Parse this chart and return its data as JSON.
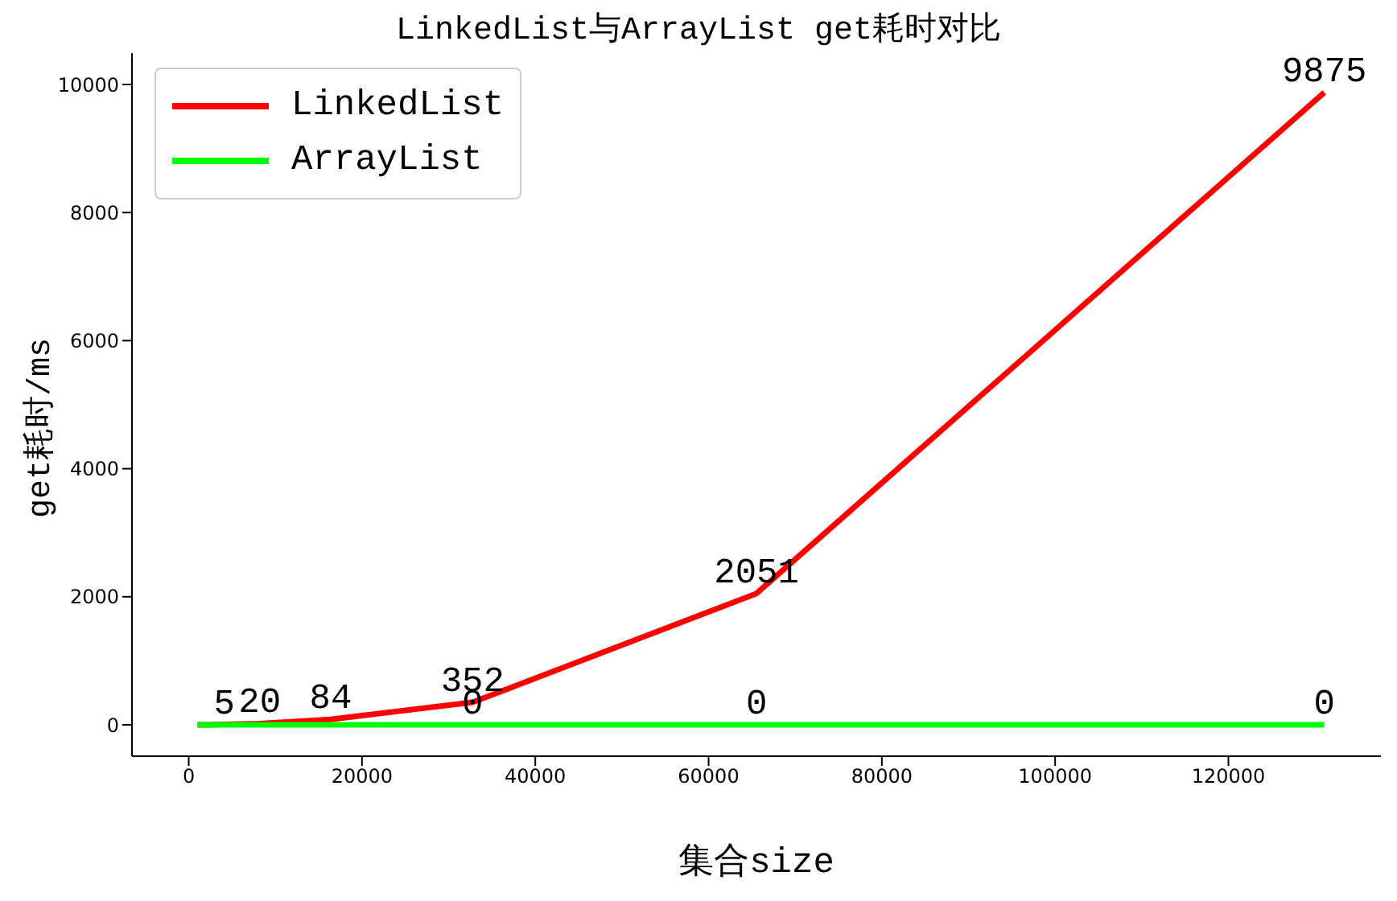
{
  "chart_data": {
    "type": "line",
    "title": "LinkedList与ArrayList get耗时对比",
    "xlabel": "集合size",
    "ylabel": "get耗时/ms",
    "x": [
      1024,
      2048,
      4096,
      8192,
      16384,
      32768,
      65536,
      131072
    ],
    "series": [
      {
        "name": "LinkedList",
        "color": "#ff0000",
        "values": [
          0,
          0,
          5,
          20,
          84,
          352,
          2051,
          9875
        ],
        "value_labels": [
          null,
          null,
          "5",
          "20",
          "84",
          "352",
          "2051",
          "9875"
        ]
      },
      {
        "name": "ArrayList",
        "color": "#00ff00",
        "values": [
          0,
          0,
          0,
          0,
          0,
          0,
          0,
          0
        ],
        "value_labels": [
          null,
          null,
          null,
          null,
          null,
          "0",
          "0",
          "0"
        ]
      }
    ],
    "xlim": [
      -6550,
      137600
    ],
    "xticks": [
      0,
      20000,
      40000,
      60000,
      80000,
      100000,
      120000
    ],
    "ylim": [
      -490,
      10490
    ],
    "yticks": [
      0,
      2000,
      4000,
      6000,
      8000,
      10000
    ],
    "grid": false,
    "legend": "top left",
    "marker": "none",
    "line_style": "solid"
  }
}
